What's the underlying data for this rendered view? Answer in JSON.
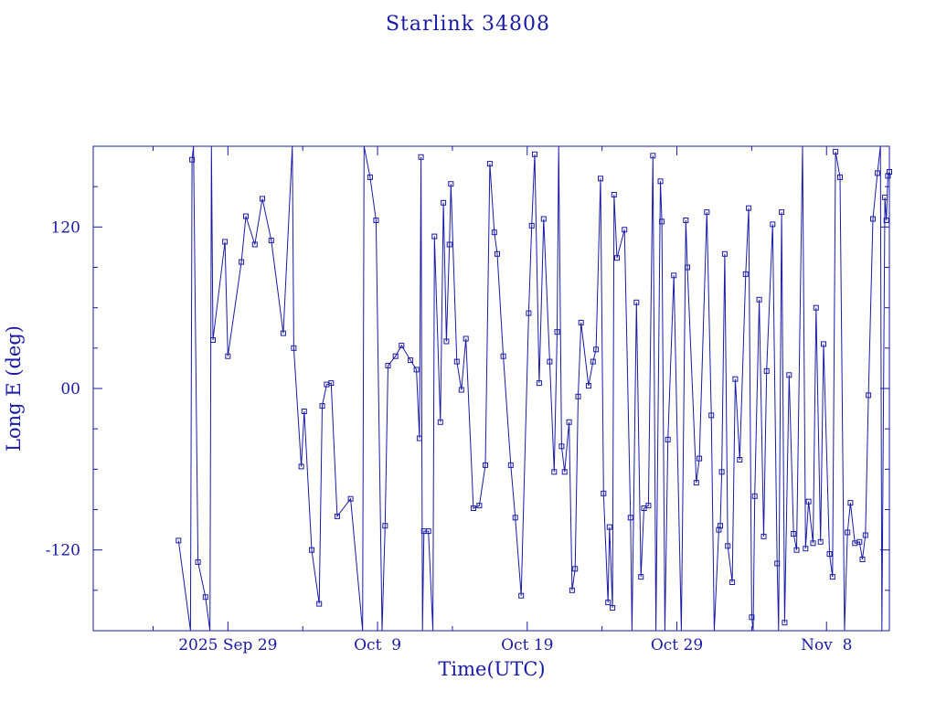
{
  "chart_data": {
    "type": "line",
    "title": "Starlink 34808",
    "xlabel": "Time(UTC)",
    "ylabel": "Long E (deg)",
    "x_ticks": [
      {
        "t": 0,
        "label": "2025 Sep 29"
      },
      {
        "t": 10,
        "label": "Oct  9"
      },
      {
        "t": 20,
        "label": "Oct 19"
      },
      {
        "t": 30,
        "label": "Oct 29"
      },
      {
        "t": 40,
        "label": "Nov  8"
      }
    ],
    "y_ticks": [
      {
        "v": 120,
        "label": "120"
      },
      {
        "v": 0,
        "label": "00"
      },
      {
        "v": -120,
        "label": "-120"
      }
    ],
    "xlim": [
      -9,
      44.2
    ],
    "ylim": [
      -180,
      180
    ],
    "line_color": "#1a1aa6",
    "series": [
      {
        "points": [
          [
            -3.3,
            -113
          ],
          [
            -2.5,
            -180
          ],
          [
            -2.4,
            170
          ],
          [
            -2.3,
            180
          ],
          [
            -2,
            -129
          ],
          [
            -1.5,
            -155
          ],
          [
            -1.2,
            -180
          ],
          [
            -1.1,
            180
          ],
          [
            -1,
            36
          ],
          [
            -0.2,
            109
          ],
          [
            0,
            24
          ],
          [
            0.9,
            94
          ],
          [
            1.2,
            128
          ],
          [
            1.8,
            107
          ],
          [
            2.3,
            141
          ],
          [
            2.9,
            110
          ],
          [
            3.7,
            41
          ],
          [
            4.3,
            180
          ],
          [
            4.4,
            30
          ],
          [
            4.9,
            -58
          ],
          [
            5.1,
            -17
          ],
          [
            5.6,
            -120
          ],
          [
            6.1,
            -160
          ],
          [
            6.3,
            -13
          ],
          [
            6.6,
            3
          ],
          [
            6.9,
            4
          ],
          [
            7.3,
            -95
          ],
          [
            8.2,
            -82
          ],
          [
            9.0,
            -180
          ],
          [
            9.1,
            180
          ],
          [
            9.5,
            157
          ],
          [
            9.9,
            125
          ],
          [
            10.3,
            -180
          ],
          [
            10.5,
            -102
          ],
          [
            10.7,
            17
          ],
          [
            11.2,
            24
          ],
          [
            11.6,
            32
          ],
          [
            12.2,
            21
          ],
          [
            12.6,
            14
          ],
          [
            12.8,
            -37
          ],
          [
            12.9,
            172
          ],
          [
            13.0,
            -180
          ],
          [
            13.1,
            -106
          ],
          [
            13.4,
            -106
          ],
          [
            13.7,
            -180
          ],
          [
            13.8,
            113
          ],
          [
            14.2,
            -25
          ],
          [
            14.4,
            138
          ],
          [
            14.6,
            35
          ],
          [
            14.8,
            107
          ],
          [
            14.9,
            152
          ],
          [
            15.3,
            20
          ],
          [
            15.6,
            -1
          ],
          [
            15.9,
            37
          ],
          [
            16.4,
            -89
          ],
          [
            16.8,
            -87
          ],
          [
            17.2,
            -57
          ],
          [
            17.5,
            167
          ],
          [
            17.8,
            116
          ],
          [
            18.0,
            100
          ],
          [
            18.4,
            24
          ],
          [
            18.9,
            -57
          ],
          [
            19.2,
            -96
          ],
          [
            19.6,
            -154
          ],
          [
            20.1,
            56
          ],
          [
            20.3,
            121
          ],
          [
            20.5,
            174
          ],
          [
            20.8,
            4
          ],
          [
            21.1,
            126
          ],
          [
            21.5,
            20
          ],
          [
            21.8,
            -62
          ],
          [
            22.0,
            42
          ],
          [
            22.1,
            180
          ],
          [
            22.3,
            -43
          ],
          [
            22.5,
            -62
          ],
          [
            22.8,
            -25
          ],
          [
            23.0,
            -150
          ],
          [
            23.2,
            -134
          ],
          [
            23.4,
            -6
          ],
          [
            23.6,
            49
          ],
          [
            24.1,
            2
          ],
          [
            24.4,
            20
          ],
          [
            24.6,
            29
          ],
          [
            24.9,
            156
          ],
          [
            25.1,
            -78
          ],
          [
            25.4,
            -159
          ],
          [
            25.5,
            -103
          ],
          [
            25.7,
            -163
          ],
          [
            25.8,
            144
          ],
          [
            26.0,
            97
          ],
          [
            26.5,
            118
          ],
          [
            26.9,
            -96
          ],
          [
            27.0,
            -180
          ],
          [
            27.3,
            64
          ],
          [
            27.6,
            -140
          ],
          [
            27.8,
            -89
          ],
          [
            28.1,
            -87
          ],
          [
            28.4,
            173
          ],
          [
            28.6,
            -180
          ],
          [
            28.9,
            154
          ],
          [
            29.0,
            124
          ],
          [
            29.2,
            -180
          ],
          [
            29.4,
            -38
          ],
          [
            29.8,
            84
          ],
          [
            30.3,
            -180
          ],
          [
            30.6,
            125
          ],
          [
            30.7,
            90
          ],
          [
            31.3,
            -70
          ],
          [
            31.5,
            -52
          ],
          [
            32.0,
            131
          ],
          [
            32.3,
            -20
          ],
          [
            32.5,
            -180
          ],
          [
            32.8,
            -105
          ],
          [
            32.9,
            -102
          ],
          [
            33.0,
            -62
          ],
          [
            33.2,
            100
          ],
          [
            33.4,
            -117
          ],
          [
            33.7,
            -144
          ],
          [
            33.9,
            7
          ],
          [
            34.2,
            -53
          ],
          [
            34.6,
            85
          ],
          [
            34.8,
            134
          ],
          [
            35.0,
            -170
          ],
          [
            35.1,
            -180
          ],
          [
            35.2,
            -80
          ],
          [
            35.5,
            66
          ],
          [
            35.8,
            -110
          ],
          [
            36.0,
            13
          ],
          [
            36.4,
            122
          ],
          [
            36.7,
            -130
          ],
          [
            36.8,
            -180
          ],
          [
            37.0,
            131
          ],
          [
            37.2,
            -174
          ],
          [
            37.5,
            10
          ],
          [
            37.8,
            -108
          ],
          [
            38.0,
            -120
          ],
          [
            38.4,
            180
          ],
          [
            38.6,
            -119
          ],
          [
            38.8,
            -84
          ],
          [
            39.1,
            -115
          ],
          [
            39.3,
            60
          ],
          [
            39.6,
            -114
          ],
          [
            39.8,
            33
          ],
          [
            40.2,
            -123
          ],
          [
            40.4,
            -140
          ],
          [
            40.6,
            176
          ],
          [
            40.9,
            157
          ],
          [
            41.2,
            -180
          ],
          [
            41.4,
            -107
          ],
          [
            41.6,
            -85
          ],
          [
            41.9,
            -115
          ],
          [
            42.2,
            -114
          ],
          [
            42.4,
            -127
          ],
          [
            42.6,
            -109
          ],
          [
            42.8,
            -5
          ],
          [
            43.1,
            126
          ],
          [
            43.4,
            160
          ],
          [
            43.6,
            180
          ],
          [
            43.7,
            -180
          ],
          [
            43.9,
            142
          ],
          [
            44.0,
            125
          ],
          [
            44.1,
            158
          ],
          [
            44.2,
            161
          ]
        ]
      }
    ]
  }
}
